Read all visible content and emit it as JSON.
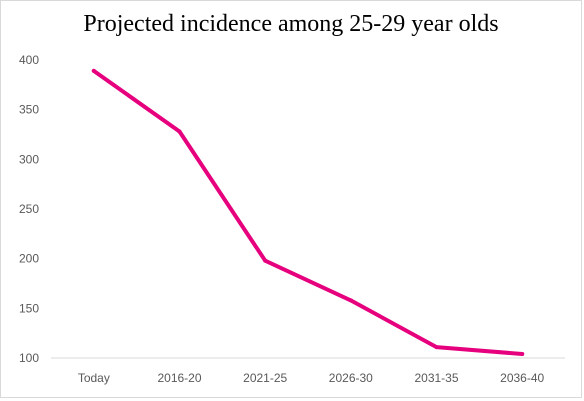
{
  "chart_data": {
    "type": "line",
    "title": "Projected incidence among 25-29 year olds",
    "categories": [
      "Today",
      "2016-20",
      "2021-25",
      "2026-30",
      "2031-35",
      "2036-40"
    ],
    "series": [
      {
        "values": [
          389,
          328,
          198,
          158,
          111,
          104
        ],
        "color": "#e6007e"
      }
    ],
    "ylim": [
      100,
      400
    ],
    "yticks": [
      "100",
      "150",
      "200",
      "250",
      "300",
      "350",
      "400"
    ],
    "grid": false,
    "legend": "none"
  }
}
